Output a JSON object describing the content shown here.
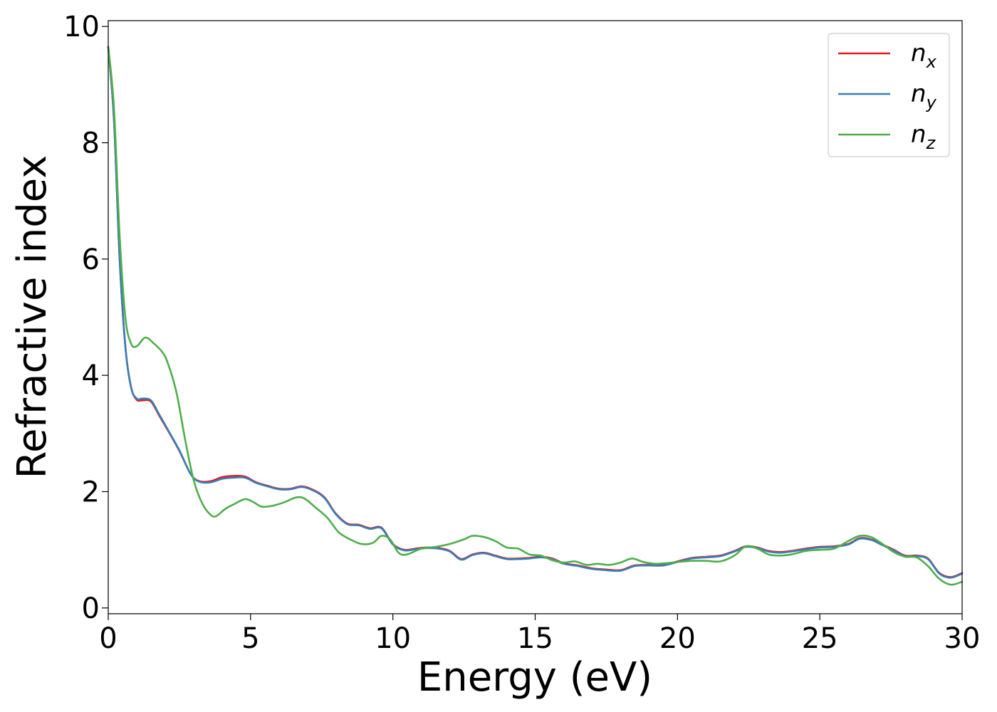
{
  "chart_data": {
    "type": "line",
    "title": "",
    "xlabel": "Energy (eV)",
    "ylabel": "Refractive index",
    "xlim": [
      0,
      30
    ],
    "ylim": [
      -0.1,
      10.1
    ],
    "xticks": [
      0,
      5,
      10,
      15,
      20,
      25,
      30
    ],
    "yticks": [
      0,
      2,
      4,
      6,
      8,
      10
    ],
    "xtick_labels": [
      "0",
      "5",
      "10",
      "15",
      "20",
      "25",
      "30"
    ],
    "ytick_labels": [
      "0",
      "2",
      "4",
      "6",
      "8",
      "10"
    ],
    "grid": false,
    "legend_position": "top-right",
    "series": [
      {
        "name": "n",
        "subscript": "x",
        "color": "#e41a1c",
        "x": [
          0,
          0.2,
          0.4,
          0.6,
          0.8,
          1.0,
          1.2,
          1.5,
          1.8,
          2.1,
          2.5,
          2.9,
          3.2,
          3.6,
          4.0,
          4.4,
          4.8,
          5.2,
          5.6,
          6.0,
          6.4,
          6.8,
          7.2,
          7.6,
          8.0,
          8.4,
          8.8,
          9.2,
          9.6,
          10.0,
          10.4,
          10.8,
          11.2,
          11.6,
          12.0,
          12.4,
          12.8,
          13.2,
          13.6,
          14.0,
          14.4,
          14.8,
          15.2,
          15.6,
          16.0,
          16.5,
          17.0,
          17.5,
          18.0,
          18.5,
          19.0,
          19.5,
          20.0,
          20.5,
          21.0,
          21.5,
          22.0,
          22.4,
          22.8,
          23.2,
          23.6,
          24.0,
          24.5,
          25.0,
          25.5,
          26.0,
          26.4,
          26.8,
          27.2,
          27.6,
          28.0,
          28.4,
          28.8,
          29.2,
          29.6,
          30.0
        ],
        "y": [
          9.65,
          8.4,
          6.0,
          4.5,
          3.8,
          3.58,
          3.57,
          3.55,
          3.3,
          3.05,
          2.7,
          2.3,
          2.18,
          2.18,
          2.25,
          2.27,
          2.26,
          2.16,
          2.1,
          2.05,
          2.05,
          2.09,
          2.03,
          1.9,
          1.62,
          1.45,
          1.43,
          1.37,
          1.38,
          1.1,
          1.0,
          1.02,
          1.04,
          1.03,
          0.98,
          0.84,
          0.92,
          0.95,
          0.9,
          0.85,
          0.85,
          0.86,
          0.88,
          0.85,
          0.77,
          0.73,
          0.68,
          0.66,
          0.65,
          0.73,
          0.74,
          0.74,
          0.8,
          0.86,
          0.88,
          0.9,
          0.98,
          1.06,
          1.04,
          0.98,
          0.96,
          0.98,
          1.02,
          1.05,
          1.06,
          1.1,
          1.2,
          1.18,
          1.09,
          1.0,
          0.9,
          0.9,
          0.85,
          0.6,
          0.53,
          0.6
        ]
      },
      {
        "name": "n",
        "subscript": "y",
        "color": "#377eb8",
        "x": [
          0,
          0.2,
          0.4,
          0.6,
          0.8,
          1.0,
          1.2,
          1.5,
          1.8,
          2.1,
          2.5,
          2.9,
          3.2,
          3.6,
          4.0,
          4.4,
          4.8,
          5.2,
          5.6,
          6.0,
          6.4,
          6.8,
          7.2,
          7.6,
          8.0,
          8.4,
          8.8,
          9.2,
          9.6,
          10.0,
          10.4,
          10.8,
          11.2,
          11.6,
          12.0,
          12.4,
          12.8,
          13.2,
          13.6,
          14.0,
          14.4,
          14.8,
          15.2,
          15.6,
          16.0,
          16.5,
          17.0,
          17.5,
          18.0,
          18.5,
          19.0,
          19.5,
          20.0,
          20.5,
          21.0,
          21.5,
          22.0,
          22.4,
          22.8,
          23.2,
          23.6,
          24.0,
          24.5,
          25.0,
          25.5,
          26.0,
          26.4,
          26.8,
          27.2,
          27.6,
          28.0,
          28.4,
          28.8,
          29.2,
          29.6,
          30.0
        ],
        "y": [
          9.65,
          8.4,
          6.0,
          4.5,
          3.8,
          3.6,
          3.6,
          3.57,
          3.32,
          3.06,
          2.71,
          2.3,
          2.17,
          2.16,
          2.22,
          2.24,
          2.24,
          2.15,
          2.09,
          2.04,
          2.04,
          2.08,
          2.02,
          1.89,
          1.61,
          1.44,
          1.42,
          1.36,
          1.37,
          1.09,
          0.99,
          1.01,
          1.03,
          1.02,
          0.97,
          0.83,
          0.91,
          0.94,
          0.89,
          0.84,
          0.84,
          0.85,
          0.87,
          0.84,
          0.76,
          0.72,
          0.67,
          0.65,
          0.64,
          0.72,
          0.73,
          0.73,
          0.79,
          0.85,
          0.87,
          0.89,
          0.97,
          1.05,
          1.03,
          0.97,
          0.95,
          0.97,
          1.01,
          1.04,
          1.05,
          1.09,
          1.19,
          1.17,
          1.08,
          0.99,
          0.89,
          0.89,
          0.84,
          0.59,
          0.52,
          0.59
        ]
      },
      {
        "name": "n",
        "subscript": "z",
        "color": "#4daf4a",
        "x": [
          0,
          0.2,
          0.4,
          0.6,
          0.8,
          1.0,
          1.3,
          1.6,
          1.9,
          2.1,
          2.4,
          2.7,
          3.0,
          3.3,
          3.6,
          3.8,
          4.1,
          4.4,
          4.8,
          5.1,
          5.4,
          5.8,
          6.2,
          6.6,
          6.9,
          7.3,
          7.7,
          8.1,
          8.5,
          8.9,
          9.3,
          9.6,
          9.9,
          10.2,
          10.5,
          11.0,
          11.5,
          12.0,
          12.5,
          12.8,
          13.2,
          13.6,
          14.0,
          14.4,
          14.8,
          15.2,
          15.6,
          16.0,
          16.4,
          16.8,
          17.2,
          17.6,
          18.0,
          18.4,
          18.8,
          19.2,
          19.6,
          20.0,
          20.5,
          21.0,
          21.5,
          22.0,
          22.4,
          22.8,
          23.2,
          23.6,
          24.0,
          24.5,
          25.0,
          25.5,
          26.0,
          26.4,
          26.8,
          27.2,
          27.6,
          28.0,
          28.4,
          28.8,
          29.2,
          29.6,
          30.0
        ],
        "y": [
          9.65,
          8.6,
          6.4,
          5.0,
          4.55,
          4.5,
          4.65,
          4.55,
          4.4,
          4.2,
          3.7,
          2.9,
          2.2,
          1.8,
          1.6,
          1.58,
          1.7,
          1.78,
          1.87,
          1.82,
          1.74,
          1.76,
          1.82,
          1.9,
          1.88,
          1.72,
          1.55,
          1.3,
          1.18,
          1.1,
          1.12,
          1.24,
          1.18,
          0.95,
          0.92,
          1.02,
          1.05,
          1.1,
          1.18,
          1.24,
          1.22,
          1.15,
          1.04,
          1.02,
          0.92,
          0.9,
          0.82,
          0.78,
          0.8,
          0.74,
          0.76,
          0.74,
          0.78,
          0.85,
          0.79,
          0.76,
          0.77,
          0.79,
          0.81,
          0.81,
          0.8,
          0.9,
          1.06,
          1.02,
          0.92,
          0.9,
          0.92,
          0.98,
          1.0,
          1.02,
          1.15,
          1.24,
          1.22,
          1.1,
          0.96,
          0.88,
          0.87,
          0.72,
          0.5,
          0.4,
          0.45
        ]
      }
    ]
  }
}
